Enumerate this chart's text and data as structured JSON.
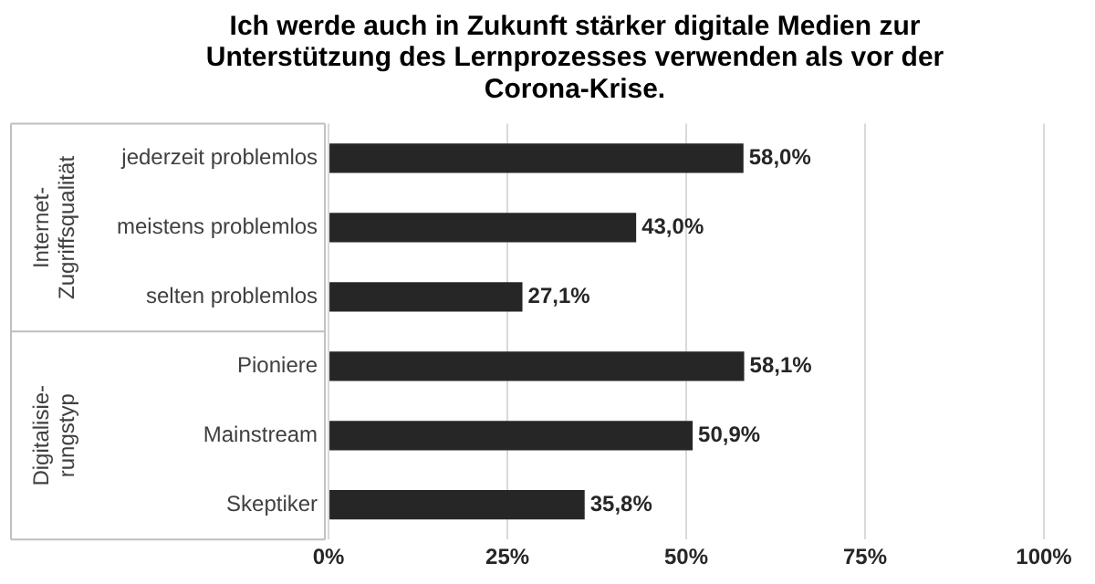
{
  "chart_data": {
    "type": "bar",
    "orientation": "horizontal",
    "title": "Ich werde auch in Zukunft stärker digitale Medien zur Unterstützung des Lernprozesses verwenden als vor der Corona-Krise.",
    "categories": [
      "jederzeit problemlos",
      "meistens problemlos",
      "selten problemlos",
      "Pioniere",
      "Mainstream",
      "Skeptiker"
    ],
    "values": [
      58.0,
      43.0,
      27.1,
      58.1,
      50.9,
      35.8
    ],
    "value_labels": [
      "58,0%",
      "43,0%",
      "27,1%",
      "58,1%",
      "50,9%",
      "35,8%"
    ],
    "color": "#262626",
    "xlim": [
      0,
      100
    ],
    "xticks": [
      {
        "value": 0,
        "label": "0%"
      },
      {
        "value": 25,
        "label": "25%"
      },
      {
        "value": 50,
        "label": "50%"
      },
      {
        "value": 75,
        "label": "75%"
      },
      {
        "value": 100,
        "label": "100%"
      }
    ],
    "grid": "x",
    "legend": false,
    "annotations": [
      "Internet-\nZugriffsqualität",
      "Digitalisie-\nrungstyp"
    ]
  }
}
